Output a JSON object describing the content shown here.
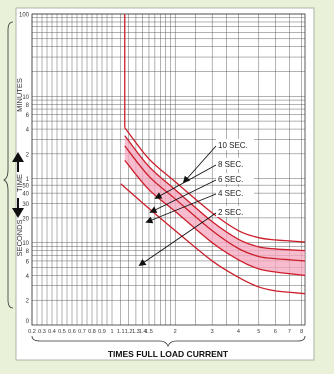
{
  "chart_data": {
    "type": "line",
    "xlabel": "TIMES FULL LOAD CURRENT",
    "y_units_upper": "MINUTES",
    "y_units_lower": "SECONDS",
    "y_time_label": "TIME",
    "x_ticks": [
      "0.2",
      "0.3",
      "0.4",
      "0.5",
      "0.6",
      "0.7",
      "0.8",
      "0.9",
      "1",
      "1.1",
      "1.2",
      "1.3",
      "1.4",
      "1.5",
      "2",
      "3",
      "4",
      "5",
      "6",
      "7",
      "8"
    ],
    "y_ticks_minutes": [
      "100",
      "10",
      "8",
      "6",
      "4",
      "2",
      "1"
    ],
    "y_ticks_seconds": [
      "50",
      "40",
      "30",
      "20",
      "10",
      "8",
      "6",
      "4",
      "2",
      "0"
    ],
    "series": [
      {
        "name": "10 SEC.",
        "x": [
          1.15,
          1.5,
          2,
          3,
          4,
          5,
          6,
          7,
          8.3
        ],
        "y": [
          250,
          104,
          55,
          23,
          14,
          11.5,
          10.8,
          10.5,
          10.2
        ]
      },
      {
        "name": "8 SEC.",
        "x": [
          1.15,
          1.5,
          2,
          3,
          4,
          5,
          6,
          7,
          8.3
        ],
        "y": [
          200,
          84,
          44,
          18,
          11,
          8.9,
          8.4,
          8.2,
          8.0
        ]
      },
      {
        "name": "6 SEC.",
        "x": [
          1.15,
          1.5,
          2,
          3,
          4,
          5,
          6,
          7,
          8.3
        ],
        "y": [
          150,
          64,
          34,
          14,
          8.5,
          6.8,
          6.4,
          6.2,
          6.0
        ]
      },
      {
        "name": "4 SEC.",
        "x": [
          1.15,
          1.5,
          2,
          3,
          4,
          5,
          6,
          7,
          8.3
        ],
        "y": [
          100,
          44,
          24,
          10,
          6.2,
          4.8,
          4.4,
          4.2,
          4.0
        ]
      },
      {
        "name": "2 SEC.",
        "x": [
          1.1,
          1.5,
          2,
          3,
          4,
          5,
          6,
          7,
          8.3
        ],
        "y": [
          52,
          26,
          14,
          6,
          3.8,
          2.9,
          2.6,
          2.5,
          2.4
        ]
      }
    ],
    "shaded_band": {
      "between": [
        "8 SEC.",
        "4 SEC."
      ],
      "color": "#f4a6be"
    },
    "curve_color": "#cc1f2b",
    "grid": true
  }
}
